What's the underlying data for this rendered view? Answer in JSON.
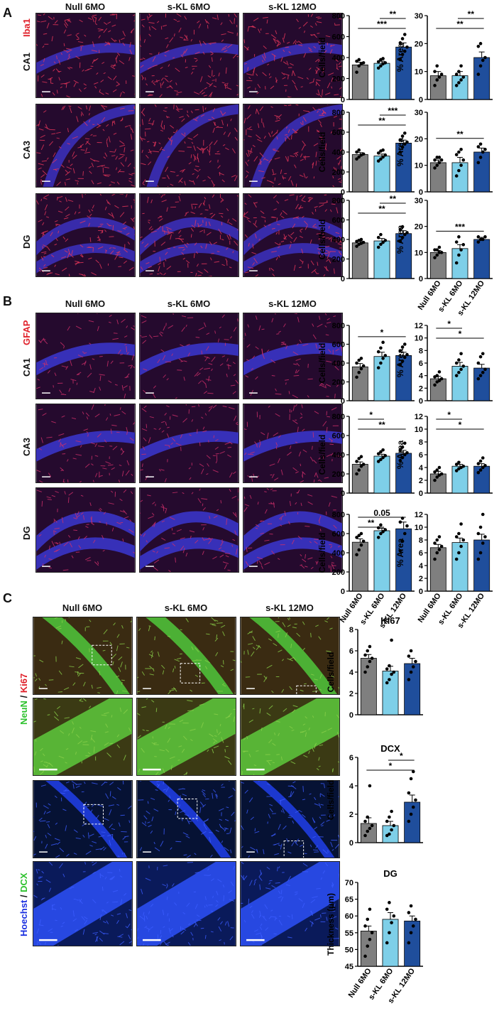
{
  "panels": {
    "A": {
      "letter": "A",
      "columns": [
        "Null 6MO",
        "s-KL 6MO",
        "s-KL 12MO"
      ],
      "stain": "Iba1",
      "rows": [
        "CA1",
        "CA3",
        "DG"
      ]
    },
    "B": {
      "letter": "B",
      "columns": [
        "Null 6MO",
        "s-KL 6MO",
        "s-KL 12MO"
      ],
      "stain": "GFAP",
      "rows": [
        "CA1",
        "CA3",
        "DG"
      ]
    },
    "C": {
      "letter": "C",
      "columns": [
        "Null 6MO",
        "s-KL 6MO",
        "s-KL 12MO"
      ],
      "stain_top": {
        "a": "NeuN",
        "sep": " / ",
        "b": "Ki67"
      },
      "stain_bottom": {
        "a": "Hoechst",
        "sep": " / ",
        "b": "DCX"
      }
    }
  },
  "colors": {
    "null": "#7f7f7f",
    "skl6": "#7ecfe8",
    "skl12": "#1f4e9c",
    "red": "#e0202a",
    "green": "#2ec22e",
    "blue": "#1a2fe0"
  },
  "chart_data": [
    {
      "id": "A-CA1-cells",
      "type": "bar",
      "categories": [
        "Null 6MO",
        "s-KL 6MO",
        "s-KL 12MO"
      ],
      "values": [
        330,
        345,
        500
      ],
      "errors": [
        25,
        20,
        40
      ],
      "ylabel": "Cells/field",
      "ylim": [
        0,
        800
      ],
      "yticks": [
        "0",
        "200",
        "400",
        "600",
        "800"
      ],
      "points": [
        [
          260,
          320,
          340,
          350,
          365,
          380
        ],
        [
          300,
          320,
          340,
          350,
          360,
          380,
          390
        ],
        [
          380,
          430,
          460,
          500,
          540,
          580,
          620
        ]
      ],
      "sig": [
        {
          "a": 0,
          "b": 2,
          "label": "***"
        },
        {
          "a": 1,
          "b": 2,
          "label": "**"
        }
      ]
    },
    {
      "id": "A-CA1-area",
      "type": "bar",
      "categories": [
        "Null 6MO",
        "s-KL 6MO",
        "s-KL 12MO"
      ],
      "values": [
        8.5,
        8.5,
        15
      ],
      "errors": [
        1.5,
        1.5,
        2
      ],
      "ylabel": "% Area",
      "ylim": [
        0,
        30
      ],
      "yticks": [
        "0",
        "10",
        "20",
        "30"
      ],
      "points": [
        [
          5,
          7,
          8,
          9,
          10,
          12
        ],
        [
          5,
          6,
          7,
          8,
          9,
          10,
          12
        ],
        [
          9,
          12,
          14,
          15,
          19,
          20
        ]
      ],
      "sig": [
        {
          "a": 0,
          "b": 2,
          "label": "**"
        },
        {
          "a": 1,
          "b": 2,
          "label": "**"
        }
      ]
    },
    {
      "id": "A-CA3-cells",
      "type": "bar",
      "categories": [
        "Null 6MO",
        "s-KL 6MO",
        "s-KL 12MO"
      ],
      "values": [
        375,
        360,
        490
      ],
      "errors": [
        20,
        20,
        30
      ],
      "ylabel": "Cells/field",
      "ylim": [
        0,
        800
      ],
      "yticks": [
        "0",
        "200",
        "400",
        "600",
        "800"
      ],
      "points": [
        [
          330,
          350,
          370,
          380,
          400,
          420
        ],
        [
          310,
          330,
          350,
          370,
          390,
          410,
          420
        ],
        [
          400,
          450,
          480,
          500,
          520,
          560,
          590
        ]
      ],
      "sig": [
        {
          "a": 0,
          "b": 2,
          "label": "**"
        },
        {
          "a": 1,
          "b": 2,
          "label": "***"
        }
      ]
    },
    {
      "id": "A-CA3-area",
      "type": "bar",
      "categories": [
        "Null 6MO",
        "s-KL 6MO",
        "s-KL 12MO"
      ],
      "values": [
        11,
        11,
        15
      ],
      "errors": [
        1,
        2,
        1.5
      ],
      "ylabel": "% Area",
      "ylim": [
        0,
        30
      ],
      "yticks": [
        "0",
        "10",
        "20",
        "30"
      ],
      "points": [
        [
          9,
          10,
          11,
          12,
          12,
          13,
          13
        ],
        [
          6,
          8,
          10,
          12,
          14,
          15,
          16
        ],
        [
          11,
          13,
          15,
          16,
          17,
          18
        ]
      ],
      "sig": [
        {
          "a": 0,
          "b": 2,
          "label": "**"
        }
      ]
    },
    {
      "id": "A-DG-cells",
      "type": "bar",
      "categories": [
        "Null 6MO",
        "s-KL 6MO",
        "s-KL 12MO"
      ],
      "values": [
        365,
        385,
        460
      ],
      "errors": [
        15,
        25,
        30
      ],
      "ylabel": "Cells/field",
      "ylim": [
        0,
        800
      ],
      "yticks": [
        "0",
        "200",
        "400",
        "600",
        "800"
      ],
      "points": [
        [
          330,
          350,
          360,
          370,
          380,
          390,
          400
        ],
        [
          320,
          350,
          370,
          390,
          420,
          450
        ],
        [
          380,
          420,
          450,
          470,
          500,
          530
        ]
      ],
      "sig": [
        {
          "a": 0,
          "b": 2,
          "label": "**"
        },
        {
          "a": 1,
          "b": 2,
          "label": "**"
        }
      ]
    },
    {
      "id": "A-DG-area",
      "type": "bar",
      "categories": [
        "Null 6MO",
        "s-KL 6MO",
        "s-KL 12MO"
      ],
      "values": [
        10,
        11.5,
        15
      ],
      "errors": [
        0.8,
        1.5,
        0.8
      ],
      "ylabel": "% Area",
      "ylim": [
        0,
        30
      ],
      "yticks": [
        "0",
        "10",
        "20",
        "30"
      ],
      "points": [
        [
          8,
          9,
          10,
          10,
          11,
          11,
          12
        ],
        [
          6,
          9,
          11,
          13,
          14,
          16
        ],
        [
          14,
          15,
          15,
          16,
          16
        ]
      ],
      "sig": [
        {
          "a": 0,
          "b": 2,
          "label": "***"
        }
      ],
      "xlabels": true
    },
    {
      "id": "B-CA1-cells",
      "type": "bar",
      "categories": [
        "Null 6MO",
        "s-KL 6MO",
        "s-KL 12MO"
      ],
      "values": [
        360,
        470,
        480
      ],
      "errors": [
        35,
        45,
        35
      ],
      "ylabel": "Cells/field",
      "ylim": [
        0,
        800
      ],
      "yticks": [
        "0",
        "200",
        "400",
        "600",
        "800"
      ],
      "points": [
        [
          250,
          300,
          340,
          370,
          400,
          430,
          450
        ],
        [
          350,
          400,
          450,
          480,
          520,
          560,
          620
        ],
        [
          380,
          420,
          460,
          490,
          530,
          570,
          600
        ]
      ],
      "sig": [
        {
          "a": 0,
          "b": 2,
          "label": "*"
        }
      ]
    },
    {
      "id": "B-CA1-area",
      "type": "bar",
      "categories": [
        "Null 6MO",
        "s-KL 6MO",
        "s-KL 12MO"
      ],
      "values": [
        3.5,
        5.5,
        5.2
      ],
      "errors": [
        0.4,
        0.6,
        0.6
      ],
      "ylabel": "% Area",
      "ylim": [
        0,
        12
      ],
      "yticks": [
        "0",
        "2",
        "4",
        "6",
        "8",
        "10",
        "12"
      ],
      "points": [
        [
          2.5,
          3,
          3.2,
          3.5,
          3.8,
          4,
          4.6
        ],
        [
          4,
          4.5,
          5,
          5.5,
          6,
          6.5,
          7.5
        ],
        [
          3.5,
          4,
          4.5,
          5,
          6,
          7,
          7.5
        ]
      ],
      "sig": [
        {
          "a": 0,
          "b": 2,
          "label": "*"
        },
        {
          "a": 0,
          "b": 1,
          "label": "*"
        }
      ]
    },
    {
      "id": "B-CA3-cells",
      "type": "bar",
      "categories": [
        "Null 6MO",
        "s-KL 6MO",
        "s-KL 12MO"
      ],
      "values": [
        300,
        385,
        415
      ],
      "errors": [
        25,
        20,
        30
      ],
      "ylabel": "Cells/field",
      "ylim": [
        0,
        800
      ],
      "yticks": [
        "0",
        "200",
        "400",
        "600",
        "800"
      ],
      "points": [
        [
          200,
          240,
          280,
          300,
          330,
          360,
          380
        ],
        [
          330,
          350,
          370,
          390,
          410,
          430,
          450
        ],
        [
          340,
          370,
          400,
          420,
          450,
          480,
          520
        ]
      ],
      "sig": [
        {
          "a": 0,
          "b": 2,
          "label": "**"
        },
        {
          "a": 0,
          "b": 1,
          "label": "*"
        }
      ]
    },
    {
      "id": "B-CA3-area",
      "type": "bar",
      "categories": [
        "Null 6MO",
        "s-KL 6MO",
        "s-KL 12MO"
      ],
      "values": [
        3,
        4.2,
        4.2
      ],
      "errors": [
        0.4,
        0.3,
        0.4
      ],
      "ylabel": "% Area",
      "ylim": [
        0,
        12
      ],
      "yticks": [
        "0",
        "2",
        "4",
        "6",
        "8",
        "10",
        "12"
      ],
      "points": [
        [
          2,
          2.5,
          2.8,
          3,
          3.3,
          3.6,
          4
        ],
        [
          3.5,
          3.8,
          4,
          4.2,
          4.5,
          4.8
        ],
        [
          3.2,
          3.6,
          4,
          4.3,
          4.6,
          5,
          5.5
        ]
      ],
      "sig": [
        {
          "a": 0,
          "b": 2,
          "label": "*"
        },
        {
          "a": 0,
          "b": 1,
          "label": "*"
        }
      ]
    },
    {
      "id": "B-DG-cells",
      "type": "bar",
      "categories": [
        "Null 6MO",
        "s-KL 6MO",
        "s-KL 12MO"
      ],
      "values": [
        510,
        630,
        650
      ],
      "errors": [
        35,
        25,
        70
      ],
      "ylabel": "Cells/field",
      "ylim": [
        0,
        800
      ],
      "yticks": [
        "0",
        "200",
        "400",
        "600",
        "800"
      ],
      "points": [
        [
          380,
          430,
          480,
          520,
          560,
          580,
          600
        ],
        [
          560,
          600,
          620,
          640,
          660,
          690
        ],
        [
          420,
          520,
          600,
          680,
          720,
          760
        ]
      ],
      "sig": [
        {
          "a": 0,
          "b": 1,
          "label": "**"
        },
        {
          "a": 0,
          "b": 2,
          "label": "0.05"
        }
      ],
      "xlabels": true
    },
    {
      "id": "B-DG-area",
      "type": "bar",
      "categories": [
        "Null 6MO",
        "s-KL 6MO",
        "s-KL 12MO"
      ],
      "values": [
        6.8,
        7.6,
        8
      ],
      "errors": [
        0.5,
        0.7,
        0.9
      ],
      "ylabel": "% Area",
      "ylim": [
        0,
        12
      ],
      "yticks": [
        "0",
        "2",
        "4",
        "6",
        "8",
        "10",
        "12"
      ],
      "points": [
        [
          5,
          6,
          6.5,
          7,
          7.5,
          8,
          8.5
        ],
        [
          5,
          6,
          7,
          8,
          8.5,
          9,
          10.5
        ],
        [
          5,
          6,
          7.5,
          8.5,
          9,
          10,
          12
        ]
      ],
      "sig": [],
      "xlabels": true
    },
    {
      "id": "C-KI67",
      "type": "bar",
      "title": "KI67",
      "categories": [
        "Null 6MO",
        "s-KL 6MO",
        "s-KL 12MO"
      ],
      "values": [
        5.3,
        4.1,
        4.8
      ],
      "errors": [
        0.35,
        0.45,
        0.5
      ],
      "ylabel": "Cells/field",
      "ylim": [
        0,
        8
      ],
      "yticks": [
        "0",
        "2",
        "4",
        "6",
        "8"
      ],
      "points": [
        [
          4,
          4.5,
          5,
          5.3,
          5.6,
          6,
          6.4
        ],
        [
          3,
          3.3,
          3.8,
          4,
          4.3,
          4.6,
          7
        ],
        [
          3.3,
          4,
          4.5,
          5,
          5.5,
          6
        ]
      ],
      "sig": []
    },
    {
      "id": "C-DCX",
      "type": "bar",
      "title": "DCX",
      "categories": [
        "Null 6MO",
        "s-KL 6MO",
        "s-KL 12MO"
      ],
      "values": [
        1.35,
        1.2,
        2.85
      ],
      "errors": [
        0.4,
        0.3,
        0.5
      ],
      "ylabel": "Cells/field",
      "ylim": [
        0,
        6
      ],
      "yticks": [
        "0",
        "2",
        "4",
        "6"
      ],
      "points": [
        [
          0.5,
          0.8,
          1,
          1.2,
          1.5,
          1.8,
          4
        ],
        [
          0.5,
          0.6,
          0.9,
          1.2,
          1.5,
          1.8,
          2.2
        ],
        [
          1.5,
          2,
          2.5,
          3,
          3.5,
          4.5,
          5
        ]
      ],
      "sig": [
        {
          "a": 0,
          "b": 2,
          "label": "*"
        },
        {
          "a": 1,
          "b": 2,
          "label": "*"
        }
      ]
    },
    {
      "id": "C-DG",
      "type": "bar",
      "title": "DG",
      "categories": [
        "Null 6MO",
        "s-KL 6MO",
        "s-KL 12MO"
      ],
      "values": [
        55.5,
        59,
        58.5
      ],
      "errors": [
        1.5,
        2,
        1.5
      ],
      "ylabel": "Thickness (μm)",
      "ylim": [
        45,
        70
      ],
      "yticks": [
        "45",
        "50",
        "55",
        "60",
        "65",
        "70"
      ],
      "points": [
        [
          48,
          51,
          53,
          55,
          57,
          59,
          62
        ],
        [
          52,
          55,
          58,
          60,
          62,
          64
        ],
        [
          52,
          55,
          57,
          59,
          61,
          63
        ]
      ],
      "sig": [],
      "xlabels": true
    }
  ]
}
